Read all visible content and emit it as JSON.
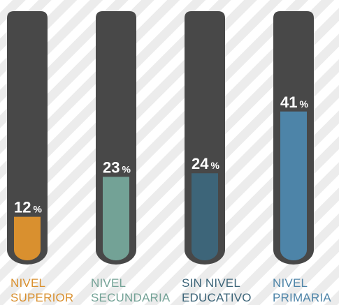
{
  "chart_data": {
    "type": "bar",
    "categories": [
      {
        "line1": "NIVEL",
        "line2": "SUPERIOR"
      },
      {
        "line1": "NIVEL",
        "line2": "SECUNDARIA"
      },
      {
        "line1": "SIN NIVEL",
        "line2": "EDUCATIVO"
      },
      {
        "line1": "NIVEL",
        "line2": "PRIMARIA"
      }
    ],
    "values": [
      12,
      23,
      24,
      41
    ],
    "unit": "%",
    "ylim": [
      0,
      100
    ],
    "colors": [
      "#d9902f",
      "#73a296",
      "#3d6579",
      "#4d84a8"
    ],
    "track_color": "#484848"
  }
}
